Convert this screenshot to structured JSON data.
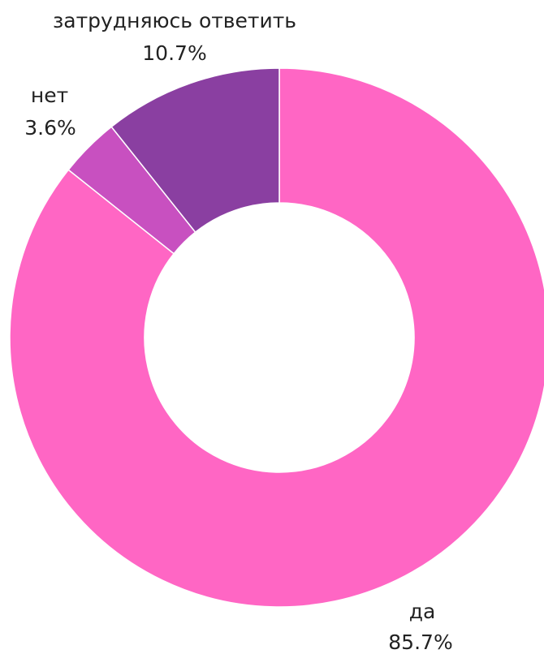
{
  "chart_data": {
    "type": "pie",
    "title": "",
    "donut": true,
    "legend": "none",
    "slices": [
      {
        "key": "yes",
        "label": "да",
        "percent_label": "85.7%",
        "value": 85.7,
        "color": "#ff66c4"
      },
      {
        "key": "no",
        "label": "нет",
        "percent_label": "3.6%",
        "value": 3.6,
        "color": "#c850c0"
      },
      {
        "key": "unsure",
        "label": "затрудняюсь ответить",
        "percent_label": "10.7%",
        "value": 10.7,
        "color": "#8a3fa1"
      }
    ]
  }
}
